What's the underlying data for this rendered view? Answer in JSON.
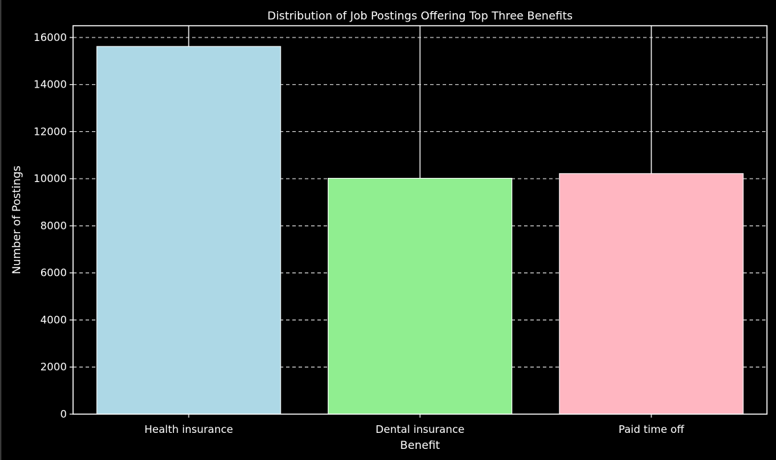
{
  "chart_data": {
    "type": "bar",
    "title": "Distribution of Job Postings Offering Top Three Benefits",
    "xlabel": "Benefit",
    "ylabel": "Number of Postings",
    "categories": [
      "Health insurance",
      "Dental insurance",
      "Paid time off"
    ],
    "values": [
      15620,
      10020,
      10220
    ],
    "upper_whisker": [
      16500,
      16500,
      16500
    ],
    "colors": [
      "#add8e6",
      "#90ee90",
      "#ffb6c1"
    ],
    "ylim": [
      0,
      16500
    ],
    "yticks": [
      0,
      2000,
      4000,
      6000,
      8000,
      10000,
      12000,
      14000,
      16000
    ],
    "grid": true,
    "grid_style": "dashed",
    "background": "#000000",
    "foreground": "#ffffff"
  }
}
